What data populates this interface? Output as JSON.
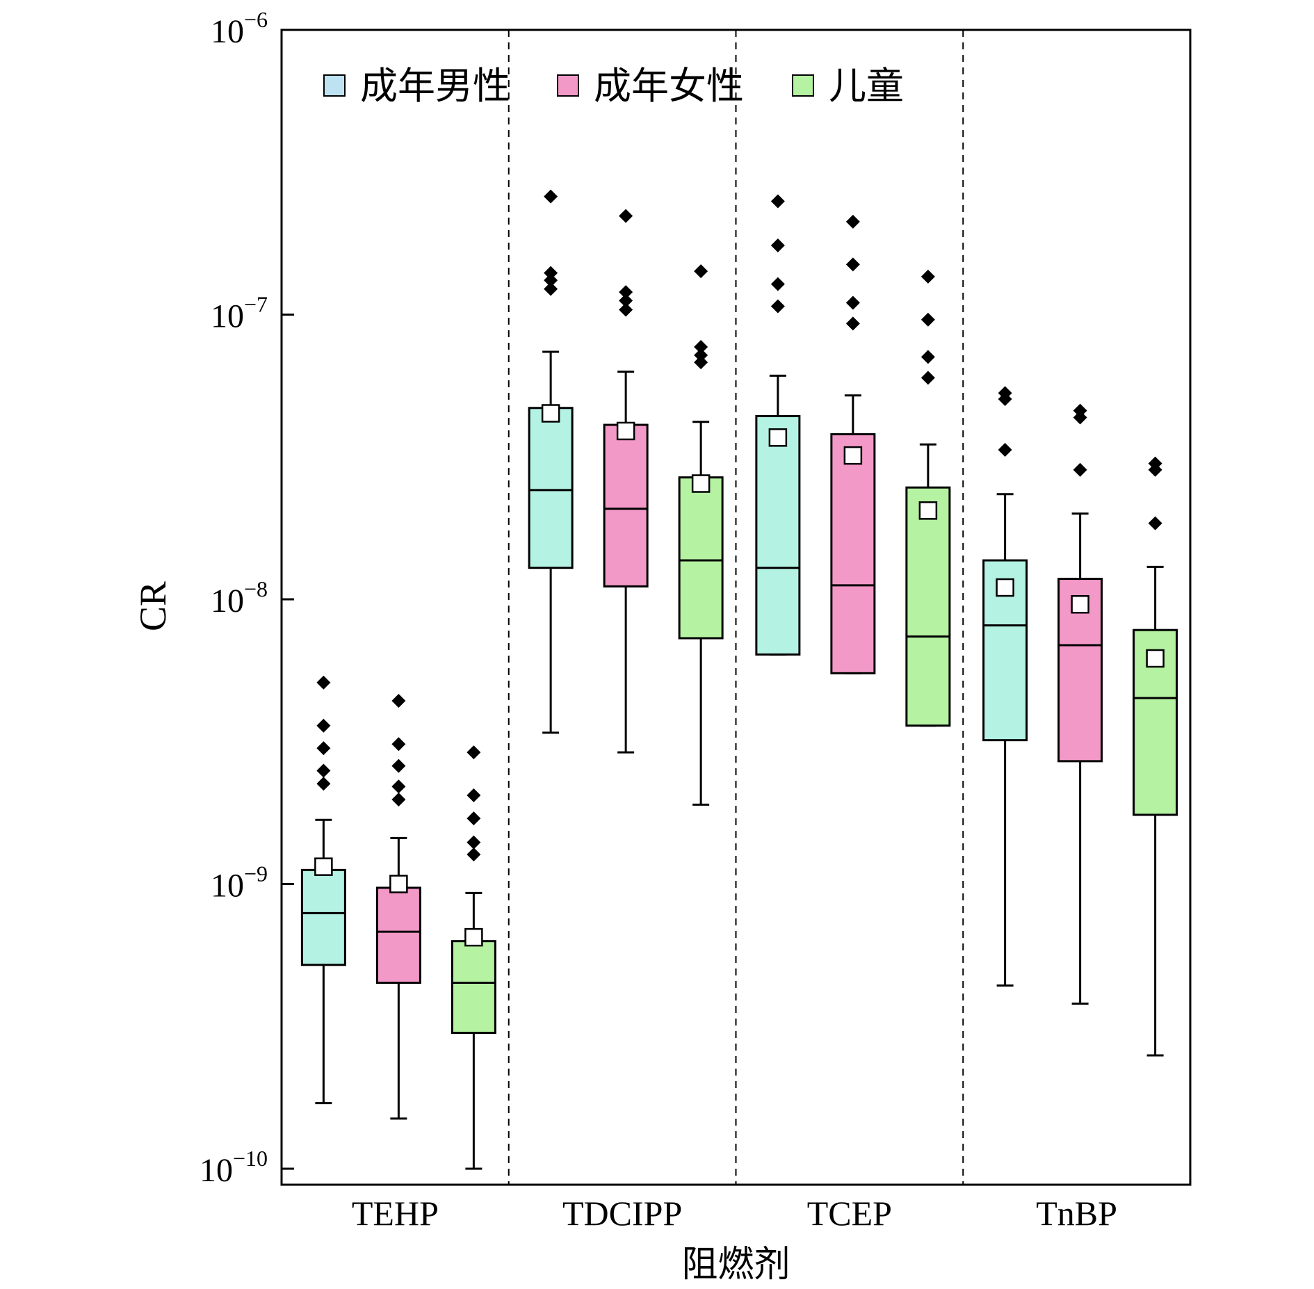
{
  "chart_data": {
    "type": "box",
    "ylabel": "CR",
    "xlabel": "阻燃剂",
    "yscale": "log",
    "ylim": [
      8.5e-11,
      1e-06
    ],
    "yticks": [
      {
        "value": 1e-10,
        "base": "10",
        "exp": "−10"
      },
      {
        "value": 1e-09,
        "base": "10",
        "exp": "−9"
      },
      {
        "value": 1e-08,
        "base": "10",
        "exp": "−8"
      },
      {
        "value": 1e-07,
        "base": "10",
        "exp": "−7"
      },
      {
        "value": 1e-06,
        "base": "10",
        "exp": "−6"
      }
    ],
    "categories": [
      "TEHP",
      "TDCIPP",
      "TCEP",
      "TnBP"
    ],
    "legend_position": "top-left",
    "separators": "dashed vertical lines between groups",
    "series": [
      {
        "name": "成年男性",
        "legend_color": "#bde3f2",
        "fill": "#b4f2e4",
        "boxes": [
          {
            "whisker_low": 1.7e-10,
            "q1": 5.2e-10,
            "median": 7.9e-10,
            "q3": 1.12e-09,
            "whisker_high": 1.68e-09,
            "mean": 1.15e-09,
            "outliers": [
              5.1e-09,
              3.6e-09,
              3e-09,
              2.5e-09,
              2.25e-09
            ]
          },
          {
            "whisker_low": 3.4e-09,
            "q1": 1.29e-08,
            "median": 2.42e-08,
            "q3": 4.7e-08,
            "whisker_high": 7.4e-08,
            "mean": 4.5e-08,
            "outliers": [
              2.6e-07,
              1.4e-07,
              1.32e-07,
              1.23e-07
            ]
          },
          {
            "whisker_low": 6.4e-09,
            "q1": 6.4e-09,
            "median": 1.29e-08,
            "q3": 4.4e-08,
            "whisker_high": 6.1e-08,
            "mean": 3.7e-08,
            "outliers": [
              2.5e-07,
              1.75e-07,
              1.28e-07,
              1.07e-07
            ]
          },
          {
            "whisker_low": 4.4e-10,
            "q1": 3.2e-09,
            "median": 8.1e-09,
            "q3": 1.37e-08,
            "whisker_high": 2.34e-08,
            "mean": 1.1e-08,
            "outliers": [
              5.3e-08,
              5.05e-08,
              3.35e-08
            ]
          }
        ]
      },
      {
        "name": "成年女性",
        "legend_color": "#f399c8",
        "fill": "#f399c8",
        "boxes": [
          {
            "whisker_low": 1.5e-10,
            "q1": 4.5e-10,
            "median": 6.8e-10,
            "q3": 9.7e-10,
            "whisker_high": 1.45e-09,
            "mean": 1e-09,
            "outliers": [
              4.4e-09,
              3.1e-09,
              2.6e-09,
              2.2e-09,
              1.98e-09
            ]
          },
          {
            "whisker_low": 2.9e-09,
            "q1": 1.11e-08,
            "median": 2.08e-08,
            "q3": 4.1e-08,
            "whisker_high": 6.3e-08,
            "mean": 3.9e-08,
            "outliers": [
              2.22e-07,
              1.2e-07,
              1.12e-07,
              1.04e-07
            ]
          },
          {
            "whisker_low": 5.5e-09,
            "q1": 5.5e-09,
            "median": 1.12e-08,
            "q3": 3.8e-08,
            "whisker_high": 5.2e-08,
            "mean": 3.2e-08,
            "outliers": [
              2.12e-07,
              1.5e-07,
              1.1e-07,
              9.3e-08
            ]
          },
          {
            "whisker_low": 3.8e-10,
            "q1": 2.7e-09,
            "median": 6.9e-09,
            "q3": 1.18e-08,
            "whisker_high": 2e-08,
            "mean": 9.6e-09,
            "outliers": [
              4.6e-08,
              4.35e-08,
              2.85e-08
            ]
          }
        ]
      },
      {
        "name": "儿童",
        "legend_color": "#b5f2a2",
        "fill": "#b5f2a2",
        "boxes": [
          {
            "whisker_low": 1e-10,
            "q1": 3e-10,
            "median": 4.5e-10,
            "q3": 6.3e-10,
            "whisker_high": 9.3e-10,
            "mean": 6.5e-10,
            "outliers": [
              2.9e-09,
              2.05e-09,
              1.7e-09,
              1.4e-09,
              1.27e-09
            ]
          },
          {
            "whisker_low": 1.9e-09,
            "q1": 7.3e-09,
            "median": 1.37e-08,
            "q3": 2.68e-08,
            "whisker_high": 4.2e-08,
            "mean": 2.55e-08,
            "outliers": [
              1.42e-07,
              7.7e-08,
              7.2e-08,
              6.8e-08
            ]
          },
          {
            "whisker_low": 3.6e-09,
            "q1": 3.6e-09,
            "median": 7.4e-09,
            "q3": 2.47e-08,
            "whisker_high": 3.5e-08,
            "mean": 2.05e-08,
            "outliers": [
              1.36e-07,
              9.6e-08,
              7.1e-08,
              6e-08
            ]
          },
          {
            "whisker_low": 2.5e-10,
            "q1": 1.75e-09,
            "median": 4.5e-09,
            "q3": 7.8e-09,
            "whisker_high": 1.3e-08,
            "mean": 6.2e-09,
            "outliers": [
              3e-08,
              2.85e-08,
              1.85e-08
            ]
          }
        ]
      }
    ]
  }
}
